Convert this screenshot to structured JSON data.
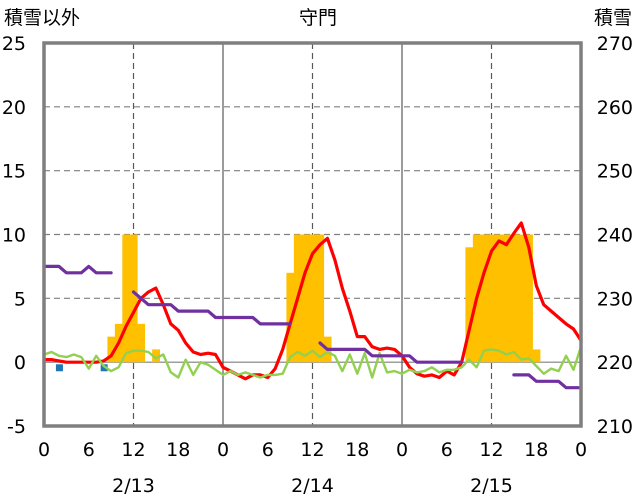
{
  "chart_data": {
    "type": "bar+line",
    "title": "守門",
    "ylabel_left": "積雪以外",
    "ylabel_right": "積雪",
    "ylim_left": [
      -5,
      25
    ],
    "ylim_right": [
      210,
      270
    ],
    "yticks_left": [
      -5,
      0,
      5,
      10,
      15,
      20,
      25
    ],
    "yticks_right": [
      210,
      220,
      230,
      240,
      250,
      260,
      270
    ],
    "xlim": [
      0,
      72
    ],
    "x_tick_positions": [
      0,
      6,
      12,
      18,
      24,
      30,
      36,
      42,
      48,
      54,
      60,
      66,
      72
    ],
    "x_tick_labels": [
      "0",
      "6",
      "12",
      "18",
      "0",
      "6",
      "12",
      "18",
      "0",
      "6",
      "12",
      "18",
      "0"
    ],
    "date_labels": [
      {
        "x": 12,
        "text": "2/13"
      },
      {
        "x": 36,
        "text": "2/14"
      },
      {
        "x": 60,
        "text": "2/15"
      }
    ],
    "series": [
      {
        "key": "precip",
        "kind": "bar",
        "color": "#FFC000",
        "points": [
          [
            9,
            2
          ],
          [
            10,
            3
          ],
          [
            11,
            10
          ],
          [
            12,
            10
          ],
          [
            13,
            3
          ],
          [
            15,
            1
          ],
          [
            33,
            7
          ],
          [
            34,
            10
          ],
          [
            35,
            10
          ],
          [
            36,
            10
          ],
          [
            37,
            10
          ],
          [
            38,
            2
          ],
          [
            57,
            9
          ],
          [
            58,
            10
          ],
          [
            59,
            10
          ],
          [
            60,
            10
          ],
          [
            61,
            10
          ],
          [
            62,
            10
          ],
          [
            63,
            10
          ],
          [
            64,
            10
          ],
          [
            65,
            10
          ],
          [
            66,
            1
          ]
        ]
      },
      {
        "key": "small_blue",
        "kind": "square",
        "color": "#1F77B4",
        "points": [
          [
            2,
            -0.4
          ],
          [
            8,
            -0.4
          ]
        ]
      },
      {
        "key": "temperature",
        "kind": "line",
        "color": "#FF0000",
        "points": [
          [
            0,
            0.2
          ],
          [
            1,
            0.2
          ],
          [
            2,
            0.1
          ],
          [
            3,
            0
          ],
          [
            4,
            0
          ],
          [
            5,
            0
          ],
          [
            6,
            0
          ],
          [
            7,
            0
          ],
          [
            8,
            0.1
          ],
          [
            9,
            0.5
          ],
          [
            10,
            1.5
          ],
          [
            11,
            2.8
          ],
          [
            12,
            3.9
          ],
          [
            13,
            5
          ],
          [
            14,
            5.5
          ],
          [
            15,
            5.8
          ],
          [
            16,
            4.5
          ],
          [
            17,
            3
          ],
          [
            18,
            2.5
          ],
          [
            19,
            1.5
          ],
          [
            20,
            0.8
          ],
          [
            21,
            0.6
          ],
          [
            22,
            0.7
          ],
          [
            23,
            0.6
          ],
          [
            24,
            -0.4
          ],
          [
            25,
            -0.7
          ],
          [
            26,
            -1
          ],
          [
            27,
            -1.3
          ],
          [
            28,
            -1
          ],
          [
            29,
            -1
          ],
          [
            30,
            -1.2
          ],
          [
            31,
            -0.5
          ],
          [
            32,
            1
          ],
          [
            33,
            3
          ],
          [
            34,
            5
          ],
          [
            35,
            7
          ],
          [
            36,
            8.5
          ],
          [
            37,
            9.2
          ],
          [
            38,
            9.7
          ],
          [
            39,
            8
          ],
          [
            40,
            5.8
          ],
          [
            41,
            4
          ],
          [
            42,
            2
          ],
          [
            43,
            2
          ],
          [
            44,
            1.2
          ],
          [
            45,
            1
          ],
          [
            46,
            1.1
          ],
          [
            47,
            1
          ],
          [
            48,
            0.5
          ],
          [
            49,
            -0.4
          ],
          [
            50,
            -0.9
          ],
          [
            51,
            -1.1
          ],
          [
            52,
            -1
          ],
          [
            53,
            -1.2
          ],
          [
            54,
            -0.7
          ],
          [
            55,
            -1
          ],
          [
            56,
            0
          ],
          [
            57,
            2.5
          ],
          [
            58,
            5
          ],
          [
            59,
            7
          ],
          [
            60,
            8.7
          ],
          [
            61,
            9.5
          ],
          [
            62,
            9.2
          ],
          [
            63,
            10.1
          ],
          [
            64,
            10.9
          ],
          [
            65,
            9
          ],
          [
            66,
            6
          ],
          [
            67,
            4.5
          ],
          [
            68,
            4
          ],
          [
            69,
            3.5
          ],
          [
            70,
            3
          ],
          [
            71,
            2.6
          ],
          [
            72,
            1.7
          ]
        ]
      },
      {
        "key": "wind",
        "kind": "line",
        "color": "#92D050",
        "points": [
          [
            0,
            0.6
          ],
          [
            1,
            0.8
          ],
          [
            2,
            0.5
          ],
          [
            3,
            0.4
          ],
          [
            4,
            0.6
          ],
          [
            5,
            0.4
          ],
          [
            6,
            -0.5
          ],
          [
            7,
            0.5
          ],
          [
            8,
            -0.3
          ],
          [
            9,
            -0.7
          ],
          [
            10,
            -0.4
          ],
          [
            11,
            0.7
          ],
          [
            12,
            0.9
          ],
          [
            13,
            0.9
          ],
          [
            14,
            0.8
          ],
          [
            15,
            0.3
          ],
          [
            16,
            0.6
          ],
          [
            17,
            -0.8
          ],
          [
            18,
            -1.2
          ],
          [
            19,
            0.2
          ],
          [
            20,
            -1
          ],
          [
            21,
            0
          ],
          [
            22,
            -0.2
          ],
          [
            23,
            -0.6
          ],
          [
            24,
            -1
          ],
          [
            25,
            -0.7
          ],
          [
            26,
            -1
          ],
          [
            27,
            -0.8
          ],
          [
            28,
            -1
          ],
          [
            29,
            -1.2
          ],
          [
            30,
            -1
          ],
          [
            31,
            -1
          ],
          [
            32,
            -0.9
          ],
          [
            33,
            0.4
          ],
          [
            34,
            0.8
          ],
          [
            35,
            0.5
          ],
          [
            36,
            0.9
          ],
          [
            37,
            0.4
          ],
          [
            38,
            0.8
          ],
          [
            39,
            0.5
          ],
          [
            40,
            -0.7
          ],
          [
            41,
            0.6
          ],
          [
            42,
            -0.9
          ],
          [
            43,
            0.7
          ],
          [
            44,
            -1.2
          ],
          [
            45,
            0.7
          ],
          [
            46,
            -0.8
          ],
          [
            47,
            -0.7
          ],
          [
            48,
            -0.9
          ],
          [
            49,
            -0.6
          ],
          [
            50,
            -0.8
          ],
          [
            51,
            -0.7
          ],
          [
            52,
            -0.4
          ],
          [
            53,
            -0.8
          ],
          [
            54,
            -0.6
          ],
          [
            55,
            -0.6
          ],
          [
            56,
            -0.4
          ],
          [
            57,
            0.2
          ],
          [
            58,
            -0.4
          ],
          [
            59,
            0.9
          ],
          [
            60,
            1
          ],
          [
            61,
            0.9
          ],
          [
            62,
            0.6
          ],
          [
            63,
            0.8
          ],
          [
            64,
            0.2
          ],
          [
            65,
            0.3
          ],
          [
            66,
            -0.3
          ],
          [
            67,
            -0.9
          ],
          [
            68,
            -0.5
          ],
          [
            69,
            -0.7
          ],
          [
            70,
            0.5
          ],
          [
            71,
            -0.6
          ],
          [
            72,
            1.2
          ]
        ]
      },
      {
        "key": "snow_depth",
        "kind": "line",
        "axis": "right",
        "color": "#7030A0",
        "segments": [
          [
            [
              0,
              235
            ],
            [
              2,
              235
            ],
            [
              3,
              234
            ],
            [
              5,
              234
            ],
            [
              6,
              235
            ],
            [
              7,
              234
            ],
            [
              9,
              234
            ]
          ],
          [
            [
              12,
              231
            ],
            [
              14,
              229
            ],
            [
              17,
              229
            ],
            [
              18,
              228
            ],
            [
              22,
              228
            ],
            [
              23,
              227
            ],
            [
              28,
              227
            ],
            [
              29,
              226
            ],
            [
              33,
              226
            ]
          ],
          [
            [
              37,
              223
            ],
            [
              38,
              222
            ],
            [
              43,
              222
            ],
            [
              44,
              221
            ],
            [
              49,
              221
            ],
            [
              50,
              220
            ],
            [
              56,
              220
            ]
          ],
          [
            [
              63,
              218
            ],
            [
              65,
              218
            ],
            [
              66,
              217
            ],
            [
              69,
              217
            ],
            [
              70,
              216
            ],
            [
              72,
              216
            ]
          ]
        ]
      }
    ]
  }
}
